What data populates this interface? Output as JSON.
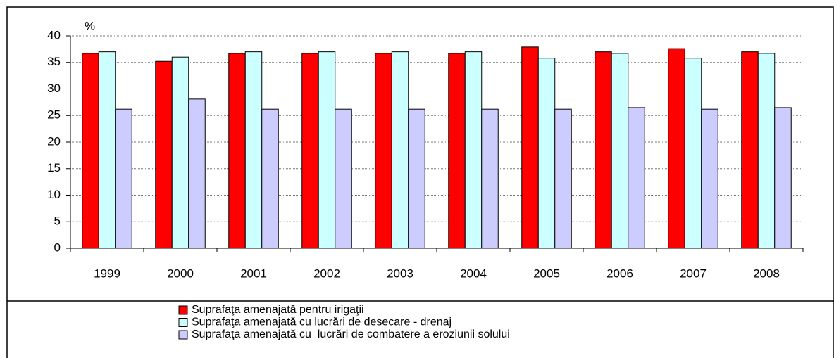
{
  "chart_data": {
    "type": "bar",
    "y_unit_label": "%",
    "categories": [
      "1999",
      "2000",
      "2001",
      "2002",
      "2003",
      "2004",
      "2005",
      "2006",
      "2007",
      "2008"
    ],
    "series": [
      {
        "name": "Suprafaţa amenajată pentru irigaţii",
        "color": "#ff0000",
        "values": [
          36.7,
          35.2,
          36.7,
          36.7,
          36.7,
          36.7,
          37.9,
          37.0,
          37.6,
          37.0
        ]
      },
      {
        "name": "Suprafaţa amenajată cu lucrări de desecare - drenaj",
        "color": "#ccffff",
        "values": [
          37.0,
          36.0,
          37.0,
          37.0,
          37.0,
          37.0,
          35.8,
          36.7,
          35.8,
          36.7
        ]
      },
      {
        "name": "Suprafaţa amenajată cu  lucrări de combatere a eroziunii solului",
        "color": "#ccccff",
        "values": [
          26.2,
          28.1,
          26.2,
          26.2,
          26.2,
          26.2,
          26.2,
          26.5,
          26.2,
          26.5
        ]
      }
    ],
    "ylim": [
      0,
      40
    ],
    "yticks": [
      0,
      5,
      10,
      15,
      20,
      25,
      30,
      35,
      40
    ],
    "grid": true
  }
}
